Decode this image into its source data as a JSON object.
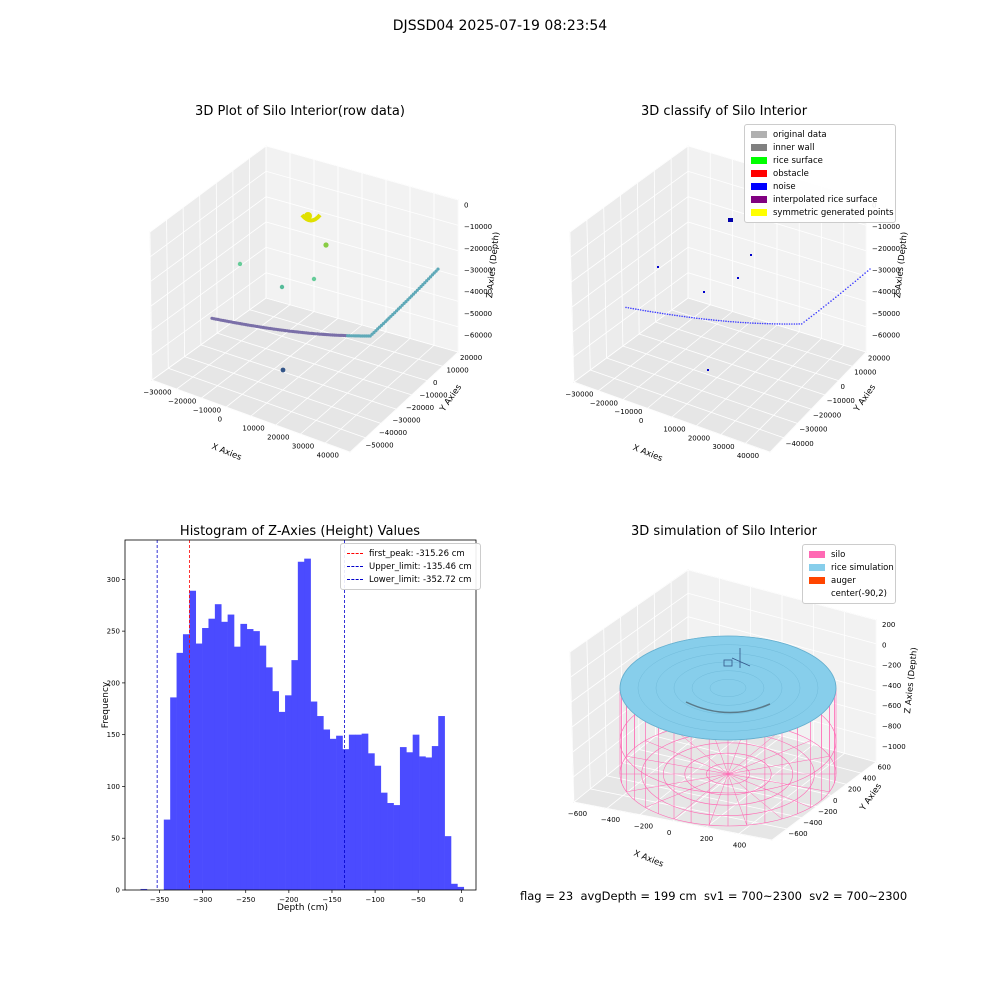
{
  "figure_title": "DJSSD04 2025-07-19 08:23:54",
  "footer_text": "flag = 23  avgDepth = 199 cm  sv1 = 700~2300  sv2 = 700~2300",
  "colors": {
    "histogram_bar": "#4b4bff",
    "first_peak_line": "#ff0000",
    "limit_lines": "#0000cc",
    "pane_gray": "#f2f2f2",
    "silo": "#ff69b4",
    "rice": "#87ceeb",
    "auger": "#ff4500"
  },
  "chart_data": [
    {
      "type": "scatter",
      "subtype": "3d",
      "title": "3D Plot of Silo Interior(row data)",
      "xlabel": "X Axies",
      "ylabel": "Y Axies",
      "zlabel": "Z Axies (Depth)",
      "x_ticks": [
        "−30000",
        "−20000",
        "−10000",
        "0",
        "10000",
        "20000",
        "30000",
        "40000"
      ],
      "y_ticks": [
        "20000",
        "10000",
        "0",
        "−10000",
        "−20000",
        "−30000",
        "−40000",
        "−50000"
      ],
      "z_ticks": [
        "0",
        "−10000",
        "−20000",
        "−30000",
        "−40000",
        "−50000",
        "−60000"
      ],
      "grid": true
    },
    {
      "type": "scatter",
      "subtype": "3d",
      "title": "3D classify of Silo Interior",
      "xlabel": "X Axies",
      "ylabel": "Y Axies",
      "zlabel": "Z Axies (Depth)",
      "x_ticks": [
        "−30000",
        "−20000",
        "−10000",
        "0",
        "10000",
        "20000",
        "30000",
        "40000"
      ],
      "y_ticks": [
        "20000",
        "10000",
        "0",
        "−10000",
        "−20000",
        "−30000",
        "−40000"
      ],
      "z_ticks": [
        "0",
        "−10000",
        "−20000",
        "−30000",
        "−40000",
        "−50000",
        "−60000"
      ],
      "legend_position": "top-right",
      "legend": [
        {
          "label": "original data",
          "color": "#b0b0b0"
        },
        {
          "label": "inner wall",
          "color": "#808080"
        },
        {
          "label": "rice surface",
          "color": "#00ff00"
        },
        {
          "label": "obstacle",
          "color": "#ff0000"
        },
        {
          "label": "noise",
          "color": "#0000ff"
        },
        {
          "label": "interpolated rice surface",
          "color": "#800080"
        },
        {
          "label": "symmetric generated points",
          "color": "#ffff00"
        }
      ],
      "grid": true
    },
    {
      "type": "bar",
      "subtype": "histogram",
      "title": "Histogram of Z-Axies (Height) Values",
      "xlabel": "Depth (cm)",
      "ylabel": "Frequency",
      "xlim": [
        -390,
        17
      ],
      "ylim": [
        0,
        338
      ],
      "x_ticks": [
        -350,
        -300,
        -250,
        -200,
        -150,
        -100,
        -50,
        0
      ],
      "y_ticks": [
        0,
        50,
        100,
        150,
        200,
        250,
        300
      ],
      "bins": {
        "start": -345,
        "width": 7.4,
        "counts": [
          68,
          186,
          229,
          247,
          289,
          238,
          253,
          262,
          276,
          259,
          266,
          235,
          257,
          252,
          250,
          236,
          215,
          192,
          172,
          188,
          222,
          317,
          320,
          182,
          168,
          155,
          146,
          149,
          136,
          150,
          150,
          151,
          132,
          120,
          94,
          84,
          82,
          138,
          133,
          150,
          129,
          128,
          139,
          168,
          52,
          6,
          3
        ]
      },
      "outlier_bins": [
        {
          "start": -372,
          "width": 7.4,
          "count": 1
        }
      ],
      "vlines": [
        {
          "x": -315.26,
          "label": "first_peak: -315.26 cm",
          "color": "#ff0000"
        },
        {
          "x": -135.46,
          "label": "Upper_limit: -135.46 cm",
          "color": "#0000cc"
        },
        {
          "x": -352.72,
          "label": "Lower_limit: -352.72 cm",
          "color": "#0000cc"
        }
      ],
      "legend_position": "top-right",
      "grid": false
    },
    {
      "type": "surface",
      "subtype": "3d",
      "title": "3D simulation of Silo Interior",
      "xlabel": "X Axies",
      "ylabel": "Y Axies",
      "zlabel": "Z Axies (Depth)",
      "x_ticks": [
        "−600",
        "−400",
        "−200",
        "0",
        "200",
        "400"
      ],
      "y_ticks": [
        "600",
        "400",
        "200",
        "0",
        "−200",
        "−400",
        "−600"
      ],
      "z_ticks": [
        "200",
        "0",
        "−200",
        "−400",
        "−600",
        "−800",
        "−1000"
      ],
      "legend_position": "top-right",
      "legend": [
        {
          "label": "silo",
          "color": "#ff69b4"
        },
        {
          "label": "rice simulation",
          "color": "#87ceeb"
        },
        {
          "label": "auger",
          "color": "#ff4500"
        },
        {
          "label": "center(-90,2)",
          "color": ""
        }
      ],
      "grid": true
    }
  ]
}
